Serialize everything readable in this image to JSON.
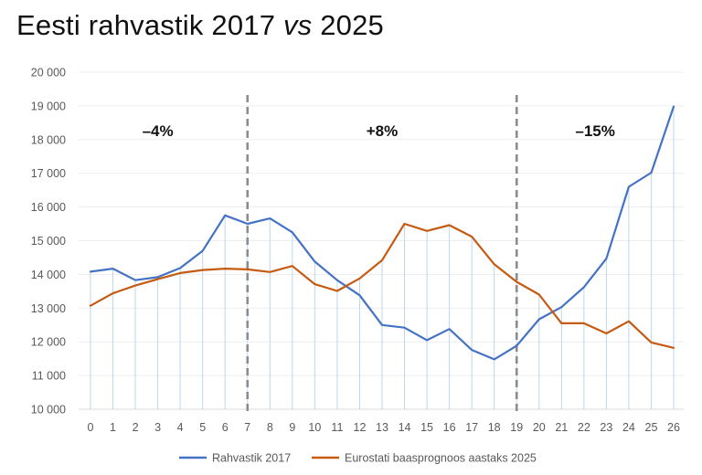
{
  "title": {
    "part1": "Eesti rahvastik 2017 ",
    "part2": "vs",
    "part3": " 2025"
  },
  "chart_data": {
    "type": "line",
    "title": "Eesti rahvastik 2017 vs 2025",
    "x": [
      0,
      1,
      2,
      3,
      4,
      5,
      6,
      7,
      8,
      9,
      10,
      11,
      12,
      13,
      14,
      15,
      16,
      17,
      18,
      19,
      20,
      21,
      22,
      23,
      24,
      25,
      26
    ],
    "ylim": [
      10000,
      20000
    ],
    "yticks": [
      10000,
      11000,
      12000,
      13000,
      14000,
      15000,
      16000,
      17000,
      18000,
      19000,
      20000
    ],
    "ytick_labels": [
      "10 000",
      "11 000",
      "12 000",
      "13 000",
      "14 000",
      "15 000",
      "16 000",
      "17 000",
      "18 000",
      "19 000",
      "20 000"
    ],
    "xticks": [
      "0",
      "1",
      "2",
      "3",
      "4",
      "5",
      "6",
      "7",
      "8",
      "9",
      "10",
      "11",
      "12",
      "13",
      "14",
      "15",
      "16",
      "17",
      "18",
      "19",
      "20",
      "21",
      "22",
      "23",
      "24",
      "25",
      "26"
    ],
    "series": [
      {
        "name": "Rahvastik 2017",
        "color": "#4472C4",
        "values": [
          14080,
          14170,
          13830,
          13920,
          14190,
          14700,
          15750,
          15500,
          15660,
          15250,
          14380,
          13830,
          13380,
          12500,
          12420,
          12050,
          12380,
          11760,
          11480,
          11880,
          12670,
          13030,
          13620,
          14470,
          16600,
          17020,
          18980
        ]
      },
      {
        "name": "Eurostati baasprognoos aastaks 2025",
        "color": "#C55A11",
        "values": [
          13070,
          13440,
          13670,
          13860,
          14040,
          14130,
          14170,
          14150,
          14070,
          14250,
          13710,
          13510,
          13880,
          14420,
          15500,
          15290,
          15460,
          15120,
          14300,
          13780,
          13400,
          12550,
          12550,
          12250,
          12610,
          11980,
          11820
        ]
      }
    ],
    "dividers": [
      7,
      19
    ],
    "annotations": [
      {
        "text": "–4%",
        "x": 3
      },
      {
        "text": "+8%",
        "x": 13
      },
      {
        "text": "–15%",
        "x": 22.5
      }
    ],
    "legend_position": "bottom",
    "drop_lines": true
  }
}
